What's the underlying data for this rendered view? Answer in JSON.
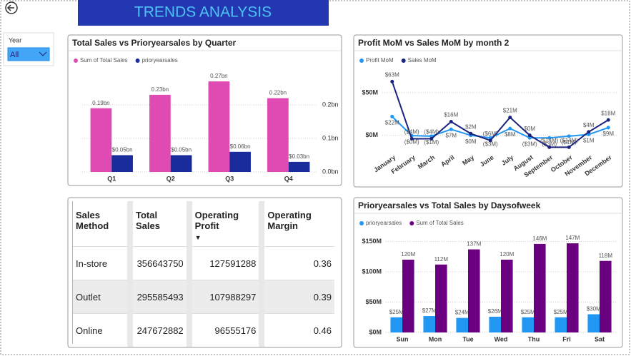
{
  "header": {
    "title": "TRENDS ANALYSIS"
  },
  "slicer": {
    "label": "Year",
    "value": "All"
  },
  "chart_data": [
    {
      "type": "bar",
      "title": "Total Sales vs Prioryearsales by Quarter",
      "categories": [
        "Q1",
        "Q2",
        "Q3",
        "Q4"
      ],
      "series": [
        {
          "name": "Sum of Total Sales",
          "color": "#e04bb3",
          "values": [
            0.19,
            0.23,
            0.27,
            0.22
          ],
          "value_labels": [
            "0.19bn",
            "0.23bn",
            "0.27bn",
            "0.22bn"
          ]
        },
        {
          "name": "prioryearsales",
          "color": "#1a2b9b",
          "values": [
            0.05,
            0.05,
            0.06,
            0.03
          ],
          "value_labels": [
            "$0.05bn",
            "$0.05bn",
            "$0.06bn",
            "$0.03bn"
          ]
        }
      ],
      "ylim": [
        0,
        0.3
      ],
      "yticks": [
        {
          "value": 0,
          "label": "0.0bn"
        },
        {
          "value": 0.1,
          "label": "0.1bn"
        },
        {
          "value": 0.2,
          "label": "0.2bn"
        }
      ],
      "y_axis_position": "right",
      "grid": true
    },
    {
      "type": "line",
      "title": "Profit MoM vs Sales MoM by month 2",
      "categories": [
        "January",
        "February",
        "March",
        "April",
        "May",
        "June",
        "July",
        "August",
        "September",
        "October",
        "November",
        "December"
      ],
      "series": [
        {
          "name": "Profit MoM",
          "color": "#2196f3",
          "values": [
            22,
            -0.4,
            -1,
            7,
            0,
            -3,
            8,
            -3,
            -3,
            -1,
            1,
            9
          ],
          "value_labels": [
            "$22M",
            "($0M)",
            "($1M)",
            "$7M",
            "$0M",
            "($3M)",
            "$8M",
            "($3M)",
            "($3M)",
            "($1M)",
            "$1M",
            "$9M"
          ]
        },
        {
          "name": "Sales MoM",
          "color": "#1a237e",
          "values": [
            63,
            -4,
            -4,
            16,
            2,
            -6,
            21,
            0,
            -14,
            -14,
            4,
            18
          ],
          "value_labels": [
            "$63M",
            "($4M)",
            "($4M)",
            "$16M",
            "$2M",
            "($6M)",
            "$21M",
            "$0M",
            "($14M)",
            "($14M)",
            "$4M",
            "$18M"
          ]
        }
      ],
      "ylim": [
        -17,
        75
      ],
      "yticks": [
        {
          "value": 0,
          "label": "$0M"
        },
        {
          "value": 50,
          "label": "$50M"
        }
      ],
      "y_axis_position": "left",
      "grid": true
    },
    {
      "type": "bar",
      "title": "Prioryearsales vs Total Sales by Daysofweek",
      "categories": [
        "Sun",
        "Mon",
        "Tue",
        "Wed",
        "Thu",
        "Fri",
        "Sat"
      ],
      "series": [
        {
          "name": "prioryearsales",
          "color": "#2196f3",
          "values": [
            25,
            27,
            24,
            26,
            25,
            25,
            30
          ],
          "value_labels": [
            "$25M",
            "$27M",
            "$24M",
            "$26M",
            "$25M",
            "$25M",
            "$30M"
          ]
        },
        {
          "name": "Sum of Total Sales",
          "color": "#6a0080",
          "values": [
            120,
            112,
            137,
            120,
            146,
            147,
            118
          ],
          "value_labels": [
            "120M",
            "112M",
            "137M",
            "120M",
            "146M",
            "147M",
            "118M"
          ]
        }
      ],
      "ylim": [
        0,
        160
      ],
      "yticks": [
        {
          "value": 0,
          "label": "$0M"
        },
        {
          "value": 50,
          "label": "$50M"
        },
        {
          "value": 100,
          "label": "$100M"
        },
        {
          "value": 150,
          "label": "$150M"
        }
      ],
      "y_axis_position": "left",
      "grid": true
    }
  ],
  "table": {
    "columns": [
      "Sales Method",
      "Total Sales",
      "Operating Profit",
      "Operating Margin"
    ],
    "rows": [
      [
        "In-store",
        356643750,
        127591288,
        0.36
      ],
      [
        "Outlet",
        295585493,
        107988297,
        0.39
      ],
      [
        "Online",
        247672882,
        96555176,
        0.46
      ]
    ]
  }
}
